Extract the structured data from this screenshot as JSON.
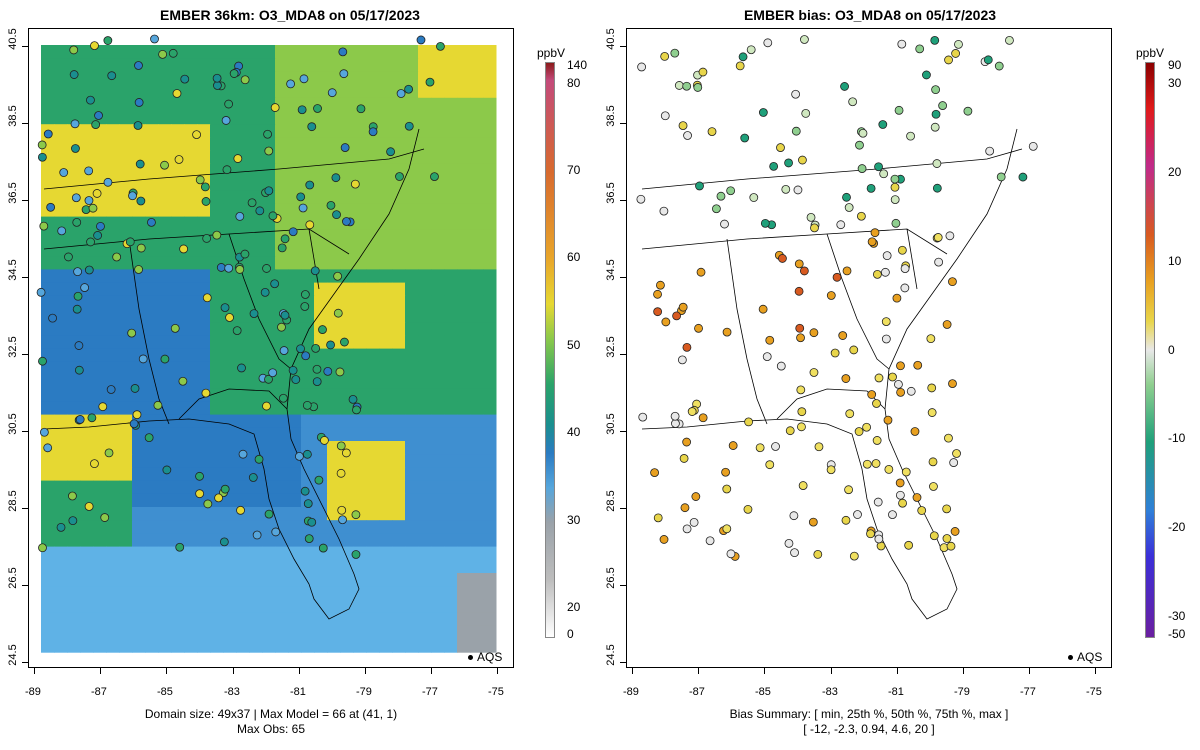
{
  "left_panel": {
    "title": "EMBER 36km: O3_MDA8 on 05/17/2023",
    "caption_line1": "Domain size: 49x37 | Max Model = 66 at (41, 1)",
    "caption_line2": "Max Obs: 65",
    "colorbar_unit": "ppbV",
    "colorbar_ticks": [
      "140",
      "80",
      "70",
      "60",
      "50",
      "40",
      "30",
      "20",
      "0"
    ],
    "legend_label": "AQS"
  },
  "right_panel": {
    "title": "EMBER bias: O3_MDA8 on 05/17/2023",
    "caption_line1": "Bias Summary: [ min, 25th %, 50th %, 75th %, max ]",
    "caption_line2": "[ -12,   -2.3,   0.94,   4.6,   20 ]",
    "colorbar_unit": "ppbV",
    "colorbar_ticks": [
      "90",
      "30",
      "20",
      "10",
      "0",
      "-10",
      "-20",
      "-30",
      "-50"
    ],
    "legend_label": "AQS"
  },
  "x_ticks": [
    "-89",
    "-87",
    "-85",
    "-83",
    "-81",
    "-79",
    "-77",
    "-75"
  ],
  "y_ticks": [
    "40.5",
    "38.5",
    "36.5",
    "34.5",
    "32.5",
    "30.5",
    "28.5",
    "26.5",
    "24.5"
  ],
  "colors": {
    "model_scale": [
      "#ffffff",
      "#bdbdbd",
      "#9aa2a9",
      "#56a6dc",
      "#2b7bc2",
      "#1a8f8f",
      "#2aa36a",
      "#8cc94a",
      "#e6d832",
      "#e8a52a",
      "#d86a2e",
      "#c34a7a",
      "#8b1a1a"
    ],
    "bias_scale": [
      "#6a1fa0",
      "#3b2fd8",
      "#2f7fd8",
      "#1fa07a",
      "#8fcf8f",
      "#e8e8e8",
      "#e8d54a",
      "#e8a020",
      "#d85a20",
      "#c02a8a",
      "#e01a1a",
      "#8b0000"
    ]
  }
}
